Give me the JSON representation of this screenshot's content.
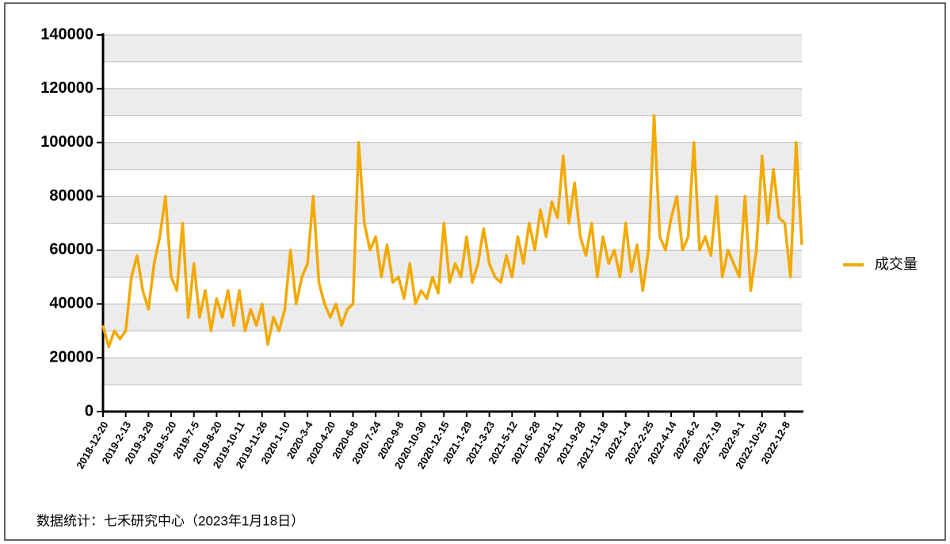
{
  "chart_data": {
    "type": "line",
    "categories": [
      "2018-12-20",
      null,
      null,
      null,
      "2019-2-13",
      null,
      null,
      null,
      "2019-3-29",
      null,
      null,
      null,
      "2019-5-20",
      null,
      null,
      null,
      "2019-7-5",
      null,
      null,
      null,
      "2019-8-20",
      null,
      null,
      null,
      "2019-10-11",
      null,
      null,
      null,
      "2019-11-26",
      null,
      null,
      null,
      "2020-1-10",
      null,
      null,
      null,
      "2020-3-4",
      null,
      null,
      null,
      "2020-4-20",
      null,
      null,
      null,
      "2020-6-8",
      null,
      null,
      null,
      "2020-7-24",
      null,
      null,
      null,
      "2020-9-8",
      null,
      null,
      null,
      "2020-10-30",
      null,
      null,
      null,
      "2020-12-15",
      null,
      null,
      null,
      "2021-1-29",
      null,
      null,
      null,
      "2021-3-23",
      null,
      null,
      null,
      "2021-5-12",
      null,
      null,
      null,
      "2021-6-28",
      null,
      null,
      null,
      "2021-8-11",
      null,
      null,
      null,
      "2021-9-28",
      null,
      null,
      null,
      "2021-11-18",
      null,
      null,
      null,
      "2022-1-4",
      null,
      null,
      null,
      "2022-2-25",
      null,
      null,
      null,
      "2022-4-14",
      null,
      null,
      null,
      "2022-6-2",
      null,
      null,
      null,
      "2022-7-19",
      null,
      null,
      null,
      "2022-9-1",
      null,
      null,
      null,
      "2022-10-25",
      null,
      null,
      null,
      "2022-12-8",
      null,
      null,
      null
    ],
    "series": [
      {
        "name": "成交量",
        "color": "#f2a900",
        "values": [
          32000,
          24000,
          30000,
          27000,
          30000,
          50000,
          58000,
          45000,
          38000,
          55000,
          65000,
          80000,
          50000,
          45000,
          70000,
          35000,
          55000,
          35000,
          45000,
          30000,
          42000,
          35000,
          45000,
          32000,
          45000,
          30000,
          38000,
          32000,
          40000,
          25000,
          35000,
          30000,
          38000,
          60000,
          40000,
          50000,
          55000,
          80000,
          48000,
          40000,
          35000,
          40000,
          32000,
          38000,
          40000,
          100000,
          70000,
          60000,
          65000,
          50000,
          62000,
          48000,
          50000,
          42000,
          55000,
          40000,
          45000,
          42000,
          50000,
          44000,
          70000,
          48000,
          55000,
          50000,
          65000,
          48000,
          55000,
          68000,
          55000,
          50000,
          48000,
          58000,
          50000,
          65000,
          55000,
          70000,
          60000,
          75000,
          65000,
          78000,
          72000,
          95000,
          70000,
          85000,
          65000,
          58000,
          70000,
          50000,
          65000,
          55000,
          60000,
          50000,
          70000,
          52000,
          62000,
          45000,
          60000,
          110000,
          65000,
          60000,
          72000,
          80000,
          60000,
          65000,
          100000,
          60000,
          65000,
          58000,
          80000,
          50000,
          60000,
          55000,
          50000,
          80000,
          45000,
          60000,
          95000,
          70000,
          90000,
          72000,
          70000,
          50000,
          100000,
          62000
        ]
      }
    ],
    "ylim": [
      0,
      140000
    ],
    "yticks": [
      0,
      20000,
      40000,
      60000,
      80000,
      100000,
      120000,
      140000
    ],
    "grid": true,
    "legend": "right",
    "footnote": "数据统计：七禾研究中心（2023年1月18日）"
  }
}
